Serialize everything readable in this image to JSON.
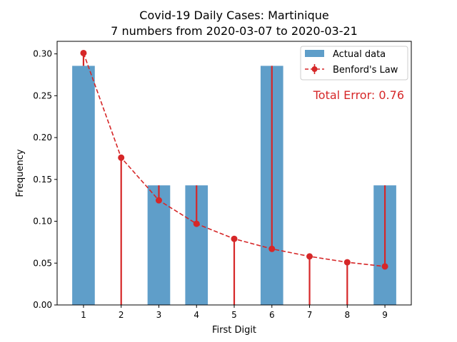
{
  "chart_data": {
    "type": "bar",
    "title": "Covid-19 Daily Cases: Martinique",
    "subtitle": "7 numbers from 2020-03-07 to 2020-03-21",
    "xlabel": "First Digit",
    "ylabel": "Frequency",
    "categories": [
      "1",
      "2",
      "3",
      "4",
      "5",
      "6",
      "7",
      "8",
      "9"
    ],
    "ylim": [
      0,
      0.315
    ],
    "yticks": [
      "0.00",
      "0.05",
      "0.10",
      "0.15",
      "0.20",
      "0.25",
      "0.30"
    ],
    "series": [
      {
        "name": "Actual data",
        "type": "bar",
        "color": "#5f9ec9",
        "values": [
          0.2857,
          0.0,
          0.1429,
          0.1429,
          0.0,
          0.2857,
          0.0,
          0.0,
          0.1429
        ]
      },
      {
        "name": "Benford's Law",
        "type": "line",
        "style": "dashed with markers and error bars",
        "color": "#d62728",
        "values": [
          0.301,
          0.176,
          0.125,
          0.097,
          0.079,
          0.067,
          0.058,
          0.051,
          0.046
        ]
      }
    ],
    "legend": {
      "placement": "top-right"
    },
    "annotation": {
      "text": "Total Error: 0.76",
      "color": "#d62728"
    },
    "grid": false
  }
}
